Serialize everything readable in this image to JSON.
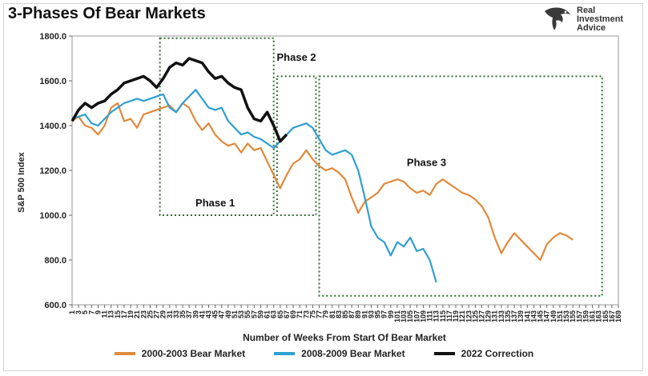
{
  "title": "3-Phases Of Bear Markets",
  "brand": {
    "line1": "Real",
    "line2": "Investment",
    "line3": "Advice"
  },
  "chart_data": {
    "type": "line",
    "title": "3-Phases Of Bear Markets",
    "xlabel": "Number of Weeks From Start Of Bear Market",
    "ylabel": "S&P 500 Index",
    "xlim": [
      1,
      169
    ],
    "ylim": [
      600,
      1800
    ],
    "yticks": [
      600,
      800,
      1000,
      1200,
      1400,
      1600,
      1800
    ],
    "ytick_labels": [
      "600.0",
      "800.0",
      "1000.0",
      "1200.0",
      "1400.0",
      "1600.0",
      "1800.0"
    ],
    "xticks": [
      1,
      3,
      5,
      7,
      9,
      11,
      13,
      15,
      17,
      19,
      21,
      23,
      25,
      27,
      29,
      31,
      33,
      35,
      37,
      39,
      41,
      43,
      45,
      47,
      49,
      51,
      53,
      55,
      57,
      59,
      61,
      63,
      65,
      67,
      69,
      71,
      73,
      75,
      77,
      79,
      81,
      83,
      85,
      87,
      89,
      91,
      93,
      95,
      97,
      99,
      101,
      103,
      105,
      107,
      109,
      111,
      113,
      115,
      117,
      119,
      121,
      123,
      125,
      127,
      129,
      131,
      133,
      135,
      137,
      139,
      141,
      143,
      145,
      147,
      149,
      151,
      153,
      155,
      157,
      159,
      161,
      163,
      165,
      167,
      169
    ],
    "grid": false,
    "legend_position": "bottom",
    "series": [
      {
        "name": "2000-2003 Bear Market",
        "color": "#e08a3c",
        "x": [
          1,
          3,
          5,
          7,
          9,
          11,
          13,
          15,
          17,
          19,
          21,
          23,
          25,
          27,
          29,
          31,
          33,
          35,
          37,
          39,
          41,
          43,
          45,
          47,
          49,
          51,
          53,
          55,
          57,
          59,
          61,
          63,
          65,
          67,
          69,
          71,
          73,
          75,
          77,
          79,
          81,
          83,
          85,
          87,
          89,
          91,
          93,
          95,
          97,
          99,
          101,
          103,
          105,
          107,
          109,
          111,
          113,
          115,
          117,
          119,
          121,
          123,
          125,
          127,
          129,
          131,
          133,
          135,
          137,
          139,
          141,
          143,
          145,
          147,
          149,
          151,
          153,
          155
        ],
        "y": [
          1420,
          1440,
          1400,
          1390,
          1360,
          1400,
          1480,
          1500,
          1420,
          1430,
          1390,
          1450,
          1460,
          1470,
          1480,
          1490,
          1460,
          1500,
          1480,
          1420,
          1380,
          1410,
          1360,
          1330,
          1310,
          1320,
          1280,
          1320,
          1290,
          1300,
          1240,
          1180,
          1120,
          1180,
          1230,
          1250,
          1290,
          1250,
          1220,
          1200,
          1210,
          1190,
          1160,
          1080,
          1010,
          1060,
          1080,
          1100,
          1140,
          1150,
          1160,
          1150,
          1120,
          1100,
          1110,
          1090,
          1140,
          1160,
          1140,
          1120,
          1100,
          1090,
          1070,
          1040,
          990,
          900,
          830,
          880,
          920,
          890,
          860,
          830,
          800,
          870,
          900,
          920,
          910,
          890
        ],
        "values_note": ""
      },
      {
        "name": "2008-2009 Bear Market",
        "color": "#2f9fd0",
        "x": [
          1,
          3,
          5,
          7,
          9,
          11,
          13,
          15,
          17,
          19,
          21,
          23,
          25,
          27,
          29,
          31,
          33,
          35,
          37,
          39,
          41,
          43,
          45,
          47,
          49,
          51,
          53,
          55,
          57,
          59,
          61,
          63,
          65,
          67,
          69,
          71,
          73,
          75,
          77,
          79,
          81,
          83,
          85,
          87,
          89,
          91,
          93,
          95,
          97,
          99,
          101,
          103,
          105,
          107,
          109,
          111,
          113
        ],
        "y": [
          1430,
          1440,
          1450,
          1410,
          1400,
          1430,
          1460,
          1480,
          1500,
          1510,
          1520,
          1510,
          1520,
          1530,
          1540,
          1480,
          1460,
          1500,
          1530,
          1560,
          1520,
          1480,
          1470,
          1480,
          1420,
          1390,
          1360,
          1370,
          1350,
          1340,
          1320,
          1300,
          1330,
          1360,
          1390,
          1400,
          1410,
          1390,
          1340,
          1290,
          1270,
          1280,
          1290,
          1270,
          1200,
          1080,
          950,
          900,
          880,
          820,
          880,
          860,
          900,
          840,
          850,
          800,
          700
        ]
      },
      {
        "name": "2022 Correction",
        "color": "#111111",
        "x": [
          1,
          3,
          5,
          7,
          9,
          11,
          13,
          15,
          17,
          19,
          21,
          23,
          25,
          27,
          29,
          31,
          33,
          35,
          37,
          39,
          41,
          43,
          45,
          47,
          49,
          51,
          53,
          55,
          57,
          59,
          61,
          63,
          65,
          67
        ],
        "y": [
          1420,
          1470,
          1500,
          1480,
          1500,
          1510,
          1540,
          1560,
          1590,
          1600,
          1610,
          1620,
          1600,
          1570,
          1610,
          1660,
          1680,
          1670,
          1700,
          1690,
          1680,
          1640,
          1610,
          1620,
          1590,
          1570,
          1560,
          1480,
          1430,
          1420,
          1460,
          1400,
          1330,
          1360
        ]
      }
    ],
    "annotations": [
      {
        "label": "Phase 1",
        "box": {
          "x0": 28,
          "x1": 63,
          "y0": 1000,
          "y1": 1790
        },
        "label_pos": {
          "x": 45,
          "y": 1040
        }
      },
      {
        "label": "Phase 2",
        "box": {
          "x0": 64,
          "x1": 76,
          "y0": 1000,
          "y1": 1620
        },
        "label_pos": {
          "x": 70,
          "y": 1690
        }
      },
      {
        "label": "Phase 3",
        "box": {
          "x0": 77,
          "x1": 164,
          "y0": 640,
          "y1": 1620
        },
        "label_pos": {
          "x": 110,
          "y": 1220
        }
      }
    ]
  }
}
